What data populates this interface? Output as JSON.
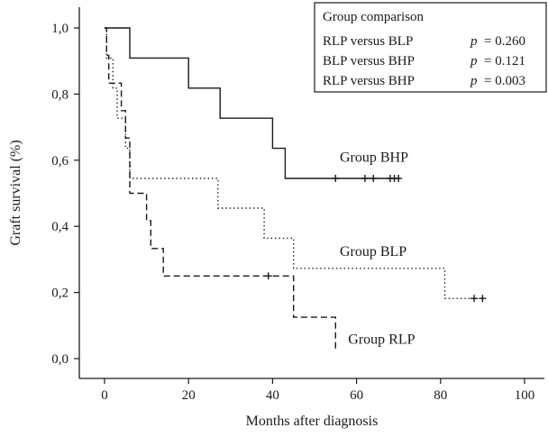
{
  "chart_data": {
    "type": "line",
    "subtype": "kaplan-meier-step",
    "xlabel": "Months after diagnosis",
    "ylabel": "Graft survival (%)",
    "xlim": [
      0,
      100
    ],
    "ylim": [
      0,
      1
    ],
    "xticks": [
      0,
      20,
      40,
      60,
      80,
      100
    ],
    "xtick_labels": [
      "0",
      "20",
      "40",
      "60",
      "80",
      "100"
    ],
    "yticks": [
      0,
      0.2,
      0.4,
      0.6,
      0.8,
      1.0
    ],
    "ytick_labels": [
      "0,0",
      "0,2",
      "0,4",
      "0,6",
      "0,8",
      "1,0"
    ],
    "grid": false,
    "series": [
      {
        "name": "Group BHP",
        "line_style": "solid",
        "steps": [
          [
            0,
            1.0
          ],
          [
            6,
            0.909
          ],
          [
            20,
            0.818
          ],
          [
            27.5,
            0.727
          ],
          [
            40,
            0.636
          ],
          [
            43,
            0.545
          ],
          [
            70,
            0.545
          ]
        ],
        "censored": [
          [
            55,
            0.545
          ],
          [
            62,
            0.545
          ],
          [
            64,
            0.545
          ],
          [
            68,
            0.545
          ],
          [
            69,
            0.545
          ],
          [
            70,
            0.545
          ]
        ]
      },
      {
        "name": "Group BLP",
        "line_style": "dotted",
        "steps": [
          [
            0,
            1.0
          ],
          [
            0.5,
            0.909
          ],
          [
            2,
            0.818
          ],
          [
            3,
            0.727
          ],
          [
            5,
            0.636
          ],
          [
            6,
            0.545
          ],
          [
            27,
            0.455
          ],
          [
            38,
            0.364
          ],
          [
            45,
            0.273
          ],
          [
            81,
            0.182
          ],
          [
            90,
            0.182
          ]
        ],
        "censored": [
          [
            88,
            0.182
          ],
          [
            90,
            0.182
          ]
        ]
      },
      {
        "name": "Group RLP",
        "line_style": "dashed",
        "steps": [
          [
            0,
            1.0
          ],
          [
            0.5,
            0.917
          ],
          [
            1,
            0.833
          ],
          [
            4,
            0.75
          ],
          [
            5,
            0.667
          ],
          [
            6,
            0.5
          ],
          [
            10,
            0.417
          ],
          [
            11,
            0.333
          ],
          [
            14,
            0.25
          ],
          [
            45,
            0.125
          ],
          [
            55,
            0.03
          ]
        ],
        "censored": [
          [
            39,
            0.25
          ]
        ]
      }
    ],
    "annotations": [
      {
        "text": "Group BHP",
        "x": 56,
        "y": 0.595
      },
      {
        "text": "Group BLP",
        "x": 56,
        "y": 0.31
      },
      {
        "text": "Group RLP",
        "x": 58,
        "y": 0.045
      }
    ],
    "legend": {
      "placement": "top-right",
      "title": "Group comparison",
      "rows": [
        {
          "label": "RLP versus BLP",
          "p_symbol": "p",
          "p_value": "= 0.260"
        },
        {
          "label": "BLP versus BHP",
          "p_symbol": "p",
          "p_value": "= 0.121"
        },
        {
          "label": "RLP versus BHP",
          "p_symbol": "p",
          "p_value": "= 0.003"
        }
      ]
    }
  }
}
